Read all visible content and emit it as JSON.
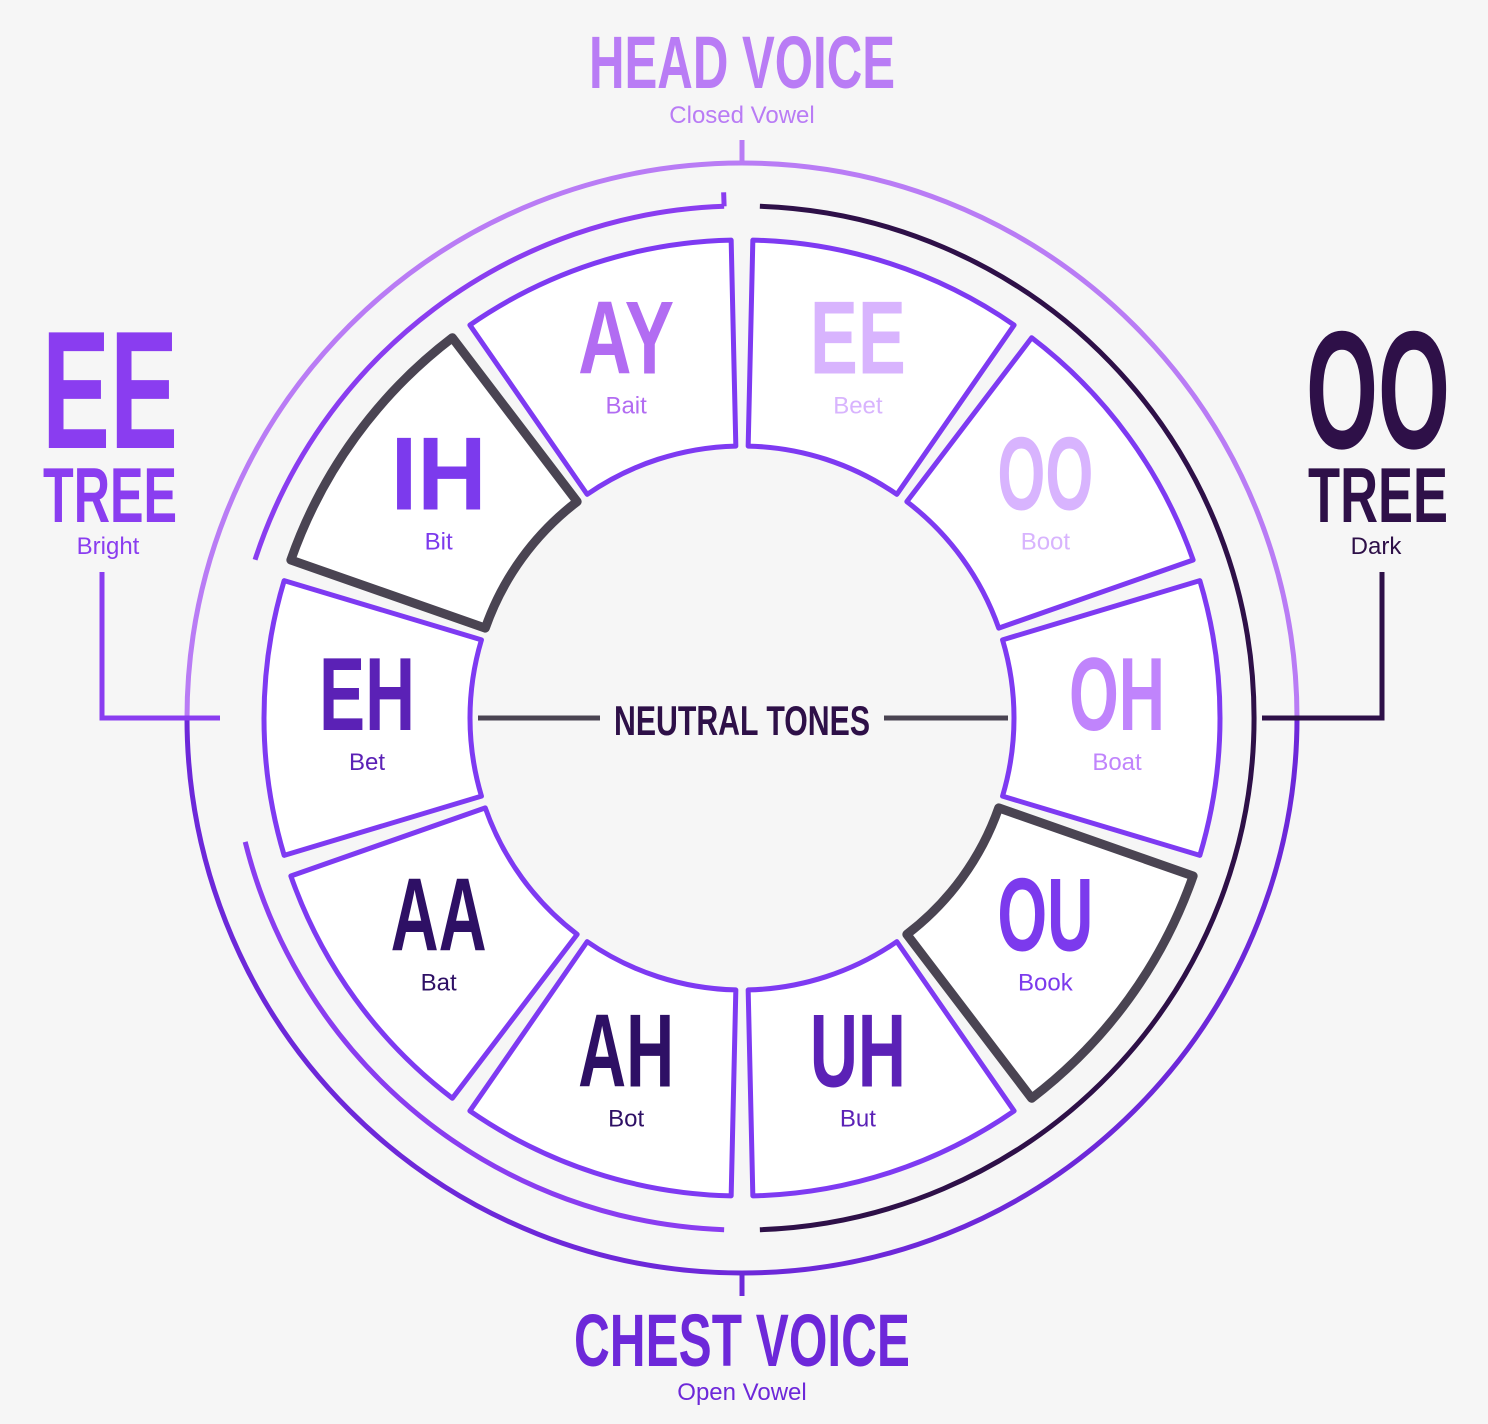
{
  "head_voice": {
    "title": "HEAD VOICE",
    "subtitle": "Closed Vowel"
  },
  "chest_voice": {
    "title": "CHEST VOICE",
    "subtitle": "Open Vowel"
  },
  "ee_tree": {
    "vowel": "EE",
    "label": "TREE",
    "subtitle": "Bright"
  },
  "oo_tree": {
    "vowel": "OO",
    "label": "TREE",
    "subtitle": "Dark"
  },
  "center_label": "NEUTRAL TONES",
  "segments": [
    {
      "vowel": "EE",
      "word": "Beet",
      "color": "#d8b4fe"
    },
    {
      "vowel": "OO",
      "word": "Boot",
      "color": "#d8b4fe"
    },
    {
      "vowel": "OH",
      "word": "Boat",
      "color": "#c084fc"
    },
    {
      "vowel": "OU",
      "word": "Book",
      "color": "#7c3aed"
    },
    {
      "vowel": "UH",
      "word": "But",
      "color": "#5b21b6"
    },
    {
      "vowel": "AH",
      "word": "Bot",
      "color": "#2e1065"
    },
    {
      "vowel": "AA",
      "word": "Bat",
      "color": "#2e1065"
    },
    {
      "vowel": "EH",
      "word": "Bet",
      "color": "#5b21b6"
    },
    {
      "vowel": "IH",
      "word": "Bit",
      "color": "#7c3aed"
    },
    {
      "vowel": "AY",
      "word": "Bait",
      "color": "#b26cf2"
    }
  ],
  "colors": {
    "head": "#b97cf5",
    "chest": "#6d28d9",
    "ee_tree": "#8a3df0",
    "oo_tree": "#2e1048",
    "neutral_outline": "#4a4452",
    "segment_outline": "#7e3af2",
    "background": "#f6f6f6"
  }
}
